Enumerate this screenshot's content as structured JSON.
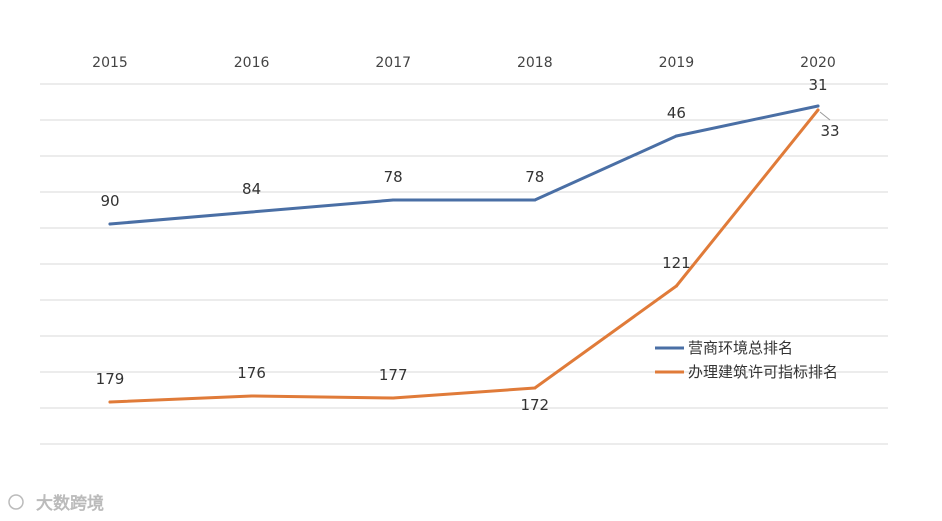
{
  "chart_data": {
    "type": "line",
    "x": [
      "2015",
      "2016",
      "2017",
      "2018",
      "2019",
      "2020"
    ],
    "series": [
      {
        "name": "营商环境总排名",
        "color": "#4a6fa5",
        "values": [
          90,
          84,
          78,
          78,
          46,
          31
        ]
      },
      {
        "name": "办理建筑许可指标排名",
        "color": "#e07b39",
        "values": [
          179,
          176,
          177,
          172,
          121,
          33
        ]
      }
    ],
    "y_axis": {
      "inverted": true,
      "range": [
        20,
        200
      ],
      "tick_labels_shown": false
    },
    "x_axis_position": "top",
    "grid": true,
    "legend_position": "right"
  },
  "watermark": {
    "footer_text": "大数跨境"
  }
}
